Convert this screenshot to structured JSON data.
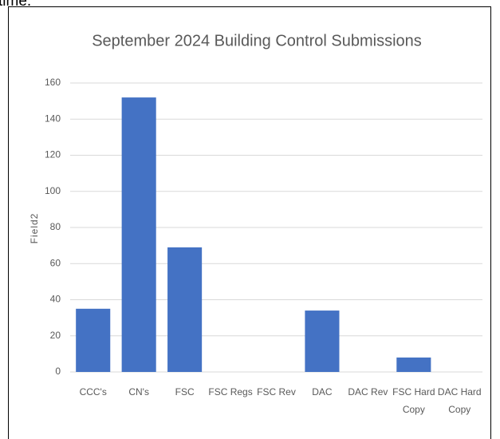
{
  "chart_data": {
    "type": "bar",
    "annotation": "time.",
    "title": "September 2024 Building Control Submissions",
    "y_label": "Field2",
    "categories": [
      "CCC's",
      "CN's",
      "FSC",
      "FSC Regs",
      "FSC Rev",
      "DAC",
      "DAC Rev",
      "FSC Hard Copy",
      "DAC Hard Copy"
    ],
    "values": [
      35,
      152,
      69,
      0,
      0,
      34,
      0,
      8,
      0
    ],
    "color": "#4472c4",
    "ylim": [
      0,
      160
    ],
    "yticks": [
      0,
      20,
      40,
      60,
      80,
      100,
      120,
      140,
      160
    ],
    "grid": true
  }
}
